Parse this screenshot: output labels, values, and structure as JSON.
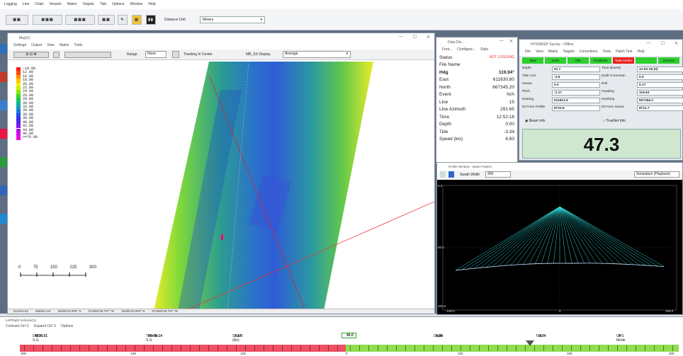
{
  "main_menu": [
    "Logging",
    "Line",
    "Chart",
    "Vessels",
    "Matrix",
    "Targets",
    "Tide",
    "Options",
    "Window",
    "Help"
  ],
  "toolbar": {
    "buttons": [
      "SE",
      "SEEE",
      "SEEE",
      "SE",
      "",
      "",
      ""
    ],
    "distance_label": "Distance Unit",
    "distance_value": "Meters"
  },
  "map_window": {
    "title": "Map(1)",
    "menu": [
      "Settings",
      "Output",
      "View",
      "Matrix",
      "Tools"
    ],
    "range_label": "Range",
    "range_value": "None",
    "tracking_label": "Tracking In Center",
    "display_label": "MB_SS Display",
    "display_value": "Average",
    "legend": [
      {
        "label": "-10.00",
        "color": "#ff1a1a"
      },
      {
        "label": "12.00",
        "color": "#ff4a00"
      },
      {
        "label": "16.00",
        "color": "#ff8a00"
      },
      {
        "label": "18.00",
        "color": "#ffc200"
      },
      {
        "label": "20.00",
        "color": "#f4f000"
      },
      {
        "label": "22.00",
        "color": "#c8ee00"
      },
      {
        "label": "24.00",
        "color": "#88e600"
      },
      {
        "label": "26.00",
        "color": "#3cd81a"
      },
      {
        "label": "28.00",
        "color": "#16c45a"
      },
      {
        "label": "30.00",
        "color": "#12b29a"
      },
      {
        "label": "32.00",
        "color": "#169ac4"
      },
      {
        "label": "34.00",
        "color": "#1a78e0"
      },
      {
        "label": "36.00",
        "color": "#2050ec"
      },
      {
        "label": "38.00",
        "color": "#3a2ef0"
      },
      {
        "label": "40.00",
        "color": "#6020ee"
      },
      {
        "label": "42.00",
        "color": "#8a18ec"
      },
      {
        "label": "44.00",
        "color": "#b014ea"
      },
      {
        "label": "46.00",
        "color": "#d012e6"
      },
      {
        "label": ">=76.00",
        "color": "#ec10e2"
      }
    ],
    "scale_labels": [
      "0",
      "75",
      "150",
      "225",
      "300"
    ],
    "status": [
      "611610.63",
      "666941.63",
      "40d39'16.900\" N",
      "074d04'06.757\" W",
      "40d39'16.900\" N",
      "074d04'06.757\" W"
    ]
  },
  "data_window": {
    "title": "Data Dis...",
    "menu": [
      "Font...",
      "Configure...",
      "Style"
    ],
    "rows": [
      {
        "k": "Status",
        "v": "NOT LOGGING",
        "alert": true
      },
      {
        "k": "File Name",
        "v": ""
      },
      {
        "k": "Hdg",
        "v": "119.94°",
        "bold": true
      },
      {
        "k": "East",
        "v": "611630.80"
      },
      {
        "k": "North",
        "v": "667345.20"
      },
      {
        "k": "Event",
        "v": "N/A"
      },
      {
        "k": "Line",
        "v": "15"
      },
      {
        "k": "Line Azimuth",
        "v": "291.65"
      },
      {
        "k": "Time",
        "v": "12:52:18"
      },
      {
        "k": "Depth",
        "v": "0.00"
      },
      {
        "k": "Tide",
        "v": "-3.34"
      },
      {
        "k": "Speed (kts)",
        "v": "6.83"
      }
    ]
  },
  "survey_window": {
    "title": "HYSWEEP Survey - Offline",
    "menu": [
      "File",
      "View",
      "Matrix",
      "Targets",
      "Corrections",
      "Tools",
      "Patch Test",
      "Help"
    ],
    "buttons": [
      {
        "label": "Raw",
        "red": false
      },
      {
        "label": "Sonic",
        "red": false
      },
      {
        "label": "HRL",
        "red": false
      },
      {
        "label": "Positioner",
        "red": false
      },
      {
        "label": "Total Center",
        "red": true
      },
      {
        "label": "",
        "red": false
      },
      {
        "label": "Devices",
        "red": false
      }
    ],
    "fields": [
      {
        "k": "Depth",
        "v": "51.7",
        "k2": "Time (Event)",
        "v2": "12:52:18 (0)"
      },
      {
        "k": "Tide Corr",
        "v": "-2.6",
        "k2": "Draft Correction",
        "v2": "0.0"
      },
      {
        "k": "Heave",
        "v": "0.0",
        "k2": "Roll",
        "v2": "0.17"
      },
      {
        "k": "Pitch",
        "v": "-1.17",
        "k2": "Heading",
        "v2": "119.63"
      },
      {
        "k": "Easting",
        "v": "611621.6",
        "k2": "Northing",
        "v2": "667356.2"
      },
      {
        "k": "Dt From Profile",
        "v": "8710.6",
        "k2": "Dt From Sonar",
        "v2": "8711.7"
      }
    ],
    "radio1": "Beam Info",
    "radio2": "TrueNet Info",
    "big_depth": "47.3"
  },
  "profile_window": {
    "title": "Profile Window - Beam Pattern",
    "swath_label": "Swath Width",
    "swath_value": "300",
    "mode_value": "Simulation (Playback)",
    "y_labels": [
      "0.0",
      "50.0",
      "100.0"
    ],
    "x_labels": [
      "-100.0",
      "0",
      "100.0"
    ]
  },
  "indicator": {
    "title": "Left/Right Indicator(1)",
    "menu": [
      "Contrast Ctrl C",
      "Expand Ctrl X",
      "Options"
    ],
    "stats": [
      {
        "k": "Dist to S.S.",
        "v": "4535.01"
      },
      {
        "k": "Time to S.S.",
        "v": "00:06:14"
      },
      {
        "k": "Speed (kts)",
        "v": "7.17"
      },
      {
        "k": "",
        "v": "40.0"
      },
      {
        "k": "Depth",
        "v": "0.00"
      },
      {
        "k": "Tide",
        "v": "-3.34"
      },
      {
        "k": "GPS Mode",
        "v": "4"
      }
    ],
    "scale": [
      "-200",
      "-150",
      "-100",
      "0",
      "100",
      "150",
      "200"
    ]
  }
}
